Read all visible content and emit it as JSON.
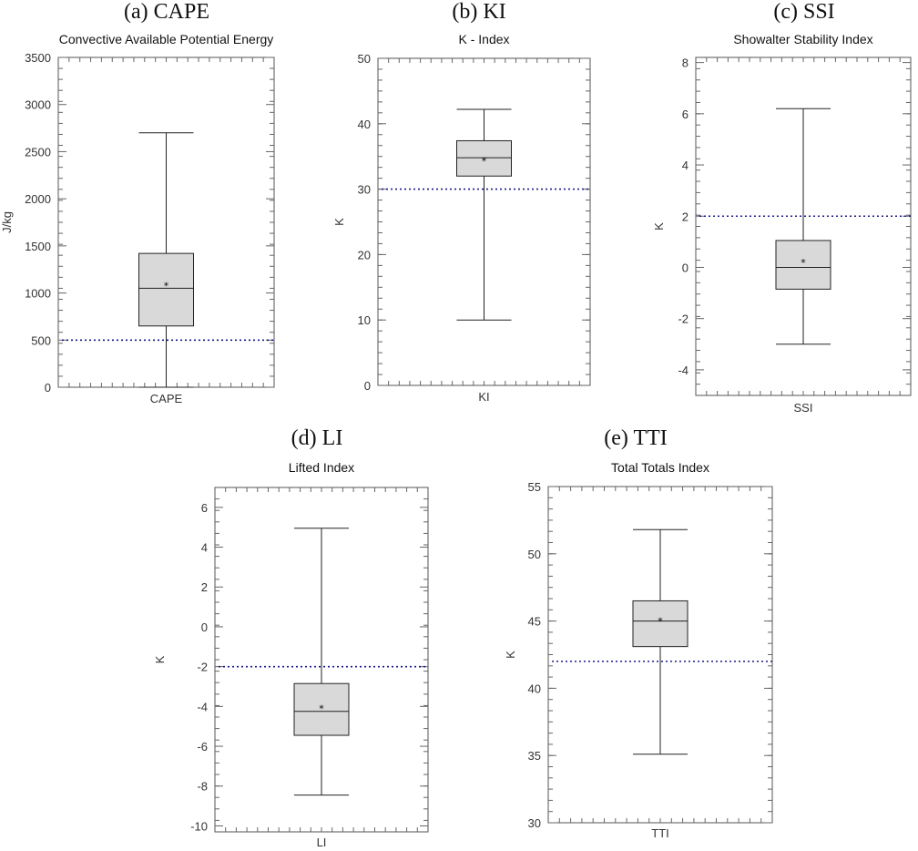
{
  "chart_data": [
    {
      "type": "box",
      "panel_label": "(a)  CAPE",
      "title": "Convective Available Potential Energy",
      "ylabel": "J/kg",
      "category": "CAPE",
      "ylim": [
        0,
        3500
      ],
      "yticks": [
        0,
        500,
        1000,
        1500,
        2000,
        2500,
        3000,
        3500
      ],
      "whisker_low": 0,
      "q1": 650,
      "median": 1050,
      "q3": 1420,
      "whisker_high": 2700,
      "mean": 1080,
      "threshold": 500,
      "mean_marker": "*"
    },
    {
      "type": "box",
      "panel_label": "(b) KI",
      "title": "K - Index",
      "ylabel": "K",
      "category": "KI",
      "ylim": [
        0,
        50
      ],
      "yticks": [
        0,
        10,
        20,
        30,
        40,
        50
      ],
      "whisker_low": 10,
      "q1": 32,
      "median": 34.8,
      "q3": 37.4,
      "whisker_high": 42.2,
      "mean": 34.3,
      "threshold": 30,
      "mean_marker": "*"
    },
    {
      "type": "box",
      "panel_label": "(c) SSI",
      "title": "Showalter Stability Index",
      "ylabel": "K",
      "category": "SSI",
      "ylim": [
        -5,
        8.2
      ],
      "yticks": [
        -4,
        -2,
        0,
        2,
        4,
        6,
        8
      ],
      "whisker_low": -3,
      "q1": -0.85,
      "median": 0,
      "q3": 1.05,
      "whisker_high": 6.2,
      "mean": 0.2,
      "threshold": 2,
      "mean_marker": "*"
    },
    {
      "type": "box",
      "panel_label": "(d) LI",
      "title": "Lifted Index",
      "ylabel": "K",
      "category": "LI",
      "ylim": [
        -10.3,
        7
      ],
      "yticks": [
        -10,
        -8,
        -6,
        -4,
        -2,
        0,
        2,
        4,
        6
      ],
      "whisker_low": -8.45,
      "q1": -5.45,
      "median": -4.25,
      "q3": -2.85,
      "whisker_high": 4.95,
      "mean": -4.1,
      "threshold": -2,
      "mean_marker": "*"
    },
    {
      "type": "box",
      "panel_label": "(e) TTI",
      "title": "Total Totals Index",
      "ylabel": "K",
      "category": "TTI",
      "ylim": [
        30,
        55
      ],
      "yticks": [
        30,
        35,
        40,
        45,
        50,
        55
      ],
      "whisker_low": 35.1,
      "q1": 43.1,
      "median": 45,
      "q3": 46.5,
      "whisker_high": 51.8,
      "mean": 45,
      "threshold": 42,
      "mean_marker": "*"
    }
  ]
}
